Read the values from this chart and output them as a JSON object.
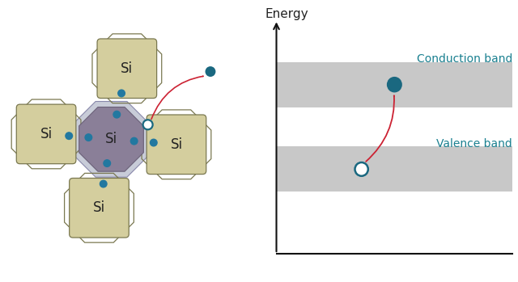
{
  "background_color": "#ffffff",
  "si_label": "Si",
  "energy_label": "Energy",
  "conduction_band_label": "Conduction band",
  "valence_band_label": "Valence band",
  "octet_fill_color": "#d4ce9e",
  "octet_edge_color": "#7a7850",
  "center_fill_color": "#8a7f98",
  "center_edge_color": "#6a6078",
  "center_outer_edge": "#8a8898",
  "bond_dot_color": "#2278a0",
  "electron_color": "#1a6880",
  "hole_color": "#ffffff",
  "hole_edge_color": "#1a6880",
  "arrow_color": "#cc2233",
  "band_color": "#c8c8c8",
  "axis_color": "#111111",
  "label_color": "#1a8090",
  "text_color": "#222222",
  "si_fontsize": 12,
  "energy_fontsize": 11,
  "band_label_fontsize": 10
}
